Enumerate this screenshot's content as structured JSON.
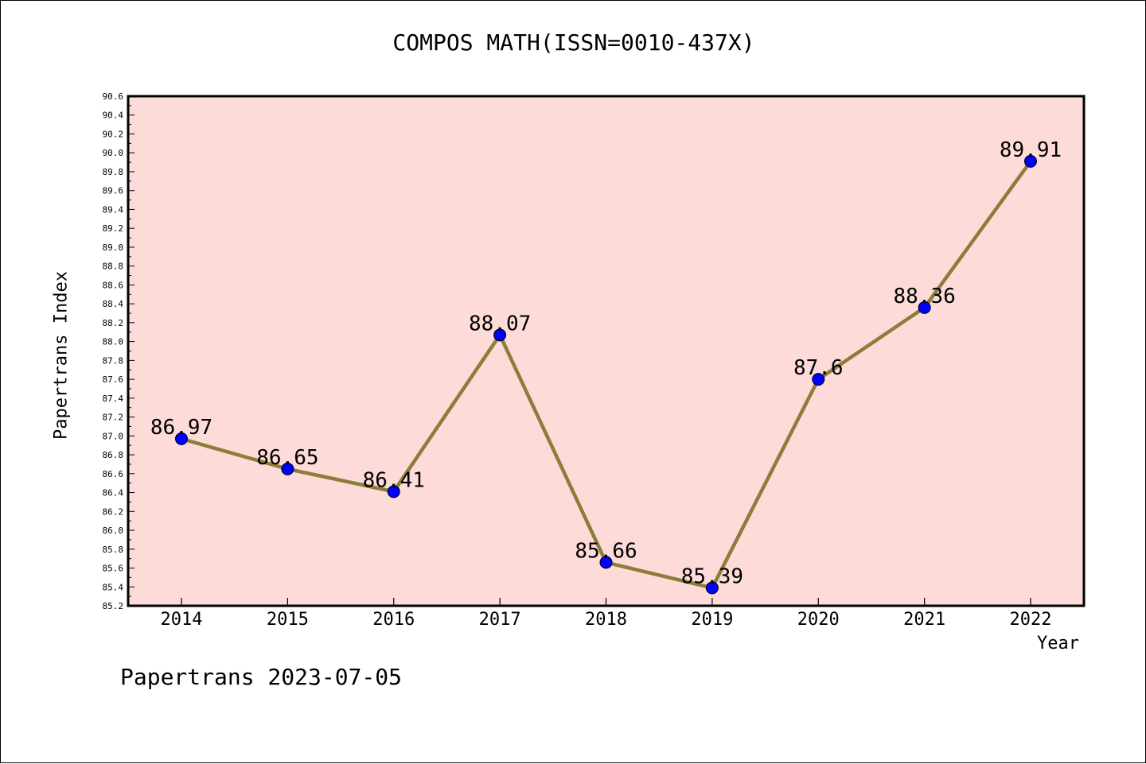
{
  "chart_data": {
    "type": "line",
    "title": "COMPOS MATH(ISSN=0010-437X)",
    "xlabel": "Year",
    "ylabel": "Papertrans Index",
    "categories": [
      "2014",
      "2015",
      "2016",
      "2017",
      "2018",
      "2019",
      "2020",
      "2021",
      "2022"
    ],
    "series": [
      {
        "values": [
          86.97,
          86.65,
          86.41,
          88.07,
          85.66,
          85.39,
          87.6,
          88.36,
          89.91
        ]
      }
    ],
    "data_labels": [
      "86.97",
      "86.65",
      "86.41",
      "88.07",
      "85.66",
      "85.39",
      "87.6",
      "88.36",
      "89.91"
    ],
    "ylim": [
      85.2,
      90.6
    ],
    "y_ticks": [
      "85.2",
      "85.4",
      "85.6",
      "85.8",
      "86.0",
      "86.2",
      "86.4",
      "86.6",
      "86.8",
      "87.0",
      "87.2",
      "87.4",
      "87.6",
      "87.8",
      "88.0",
      "88.2",
      "88.4",
      "88.6",
      "88.8",
      "89.0",
      "89.2",
      "89.4",
      "89.6",
      "89.8",
      "90.0",
      "90.2",
      "90.4",
      "90.6"
    ],
    "grid": false,
    "colors": {
      "plot_background": "#fddbd8",
      "line": "#8b7d3a",
      "marker": "#0000ff"
    }
  },
  "footer": {
    "note": "Papertrans 2023-07-05"
  }
}
